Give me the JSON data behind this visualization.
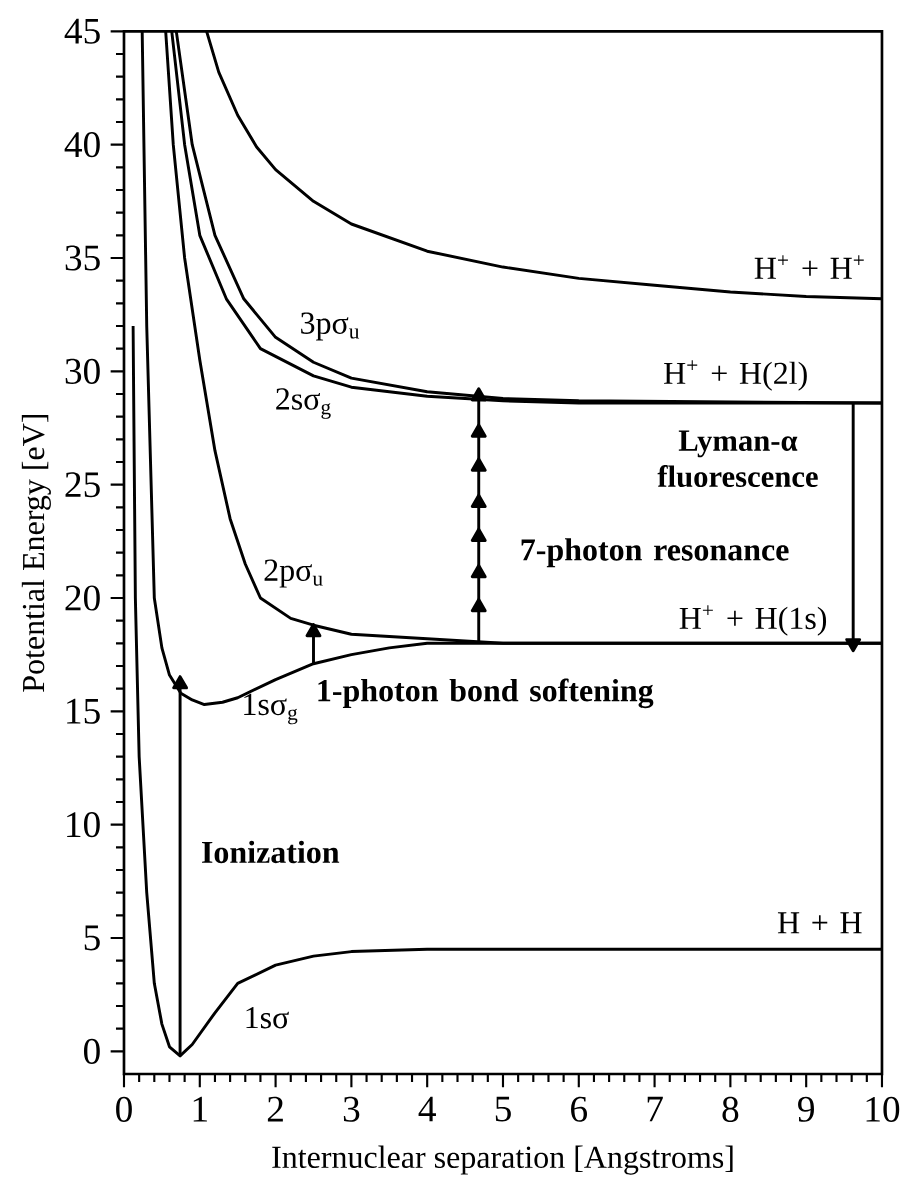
{
  "chart_data": {
    "type": "line",
    "xlabel": "Internuclear separation [Angstroms]",
    "ylabel": "Potential Energy [eV]",
    "xlim": [
      0,
      10
    ],
    "ylim": [
      -1,
      45
    ],
    "xticks": [
      0,
      1,
      2,
      3,
      4,
      5,
      6,
      7,
      8,
      9,
      10
    ],
    "yticks": [
      0,
      5,
      10,
      15,
      20,
      25,
      30,
      35,
      40,
      45
    ],
    "series": [
      {
        "color": "#000000",
        "x": [
          0.12,
          0.15,
          0.2,
          0.3,
          0.4,
          0.5,
          0.6,
          0.74,
          0.9,
          1.2,
          1.5,
          2,
          2.5,
          3,
          4,
          5,
          10
        ],
        "values": [
          32,
          20,
          13,
          7,
          3,
          1.2,
          0.2,
          -0.2,
          0.3,
          1.7,
          3,
          3.8,
          4.2,
          4.4,
          4.5,
          4.5,
          4.5
        ]
      },
      {
        "color": "#000000",
        "x": [
          0.24,
          0.3,
          0.4,
          0.5,
          0.6,
          0.75,
          0.9,
          1.06,
          1.3,
          1.5,
          2,
          2.5,
          3,
          3.5,
          4,
          5,
          10
        ],
        "values": [
          45,
          32,
          20,
          17.8,
          16.6,
          15.8,
          15.5,
          15.3,
          15.4,
          15.6,
          16.4,
          17.1,
          17.5,
          17.8,
          18,
          18,
          18
        ]
      },
      {
        "color": "#000000",
        "x": [
          0.55,
          0.65,
          0.8,
          1,
          1.2,
          1.4,
          1.6,
          1.8,
          2.2,
          2.5,
          3,
          4,
          5,
          10
        ],
        "values": [
          45,
          40,
          35,
          30.5,
          26.5,
          23.5,
          21.5,
          20,
          19.1,
          18.8,
          18.4,
          18.2,
          18,
          18
        ]
      },
      {
        "color": "#000000",
        "x": [
          0.63,
          0.8,
          1,
          1.35,
          1.8,
          2.5,
          3,
          4,
          5,
          6,
          10
        ],
        "values": [
          45,
          40,
          36,
          33.2,
          31,
          29.8,
          29.3,
          28.9,
          28.7,
          28.6,
          28.6
        ]
      },
      {
        "color": "#000000",
        "x": [
          0.69,
          0.9,
          1.2,
          1.58,
          2,
          2.5,
          3,
          4,
          5,
          6,
          10
        ],
        "values": [
          45,
          40,
          36,
          33.2,
          31.5,
          30.4,
          29.7,
          29.1,
          28.8,
          28.7,
          28.6
        ]
      },
      {
        "color": "#000000",
        "x": [
          1.09,
          1.25,
          1.5,
          1.75,
          2,
          2.5,
          3,
          4,
          5,
          6,
          7,
          8,
          9,
          10
        ],
        "values": [
          45,
          43.2,
          41.3,
          39.9,
          38.9,
          37.5,
          36.5,
          35.3,
          34.6,
          34.1,
          33.8,
          33.5,
          33.3,
          33.2
        ]
      },
      {
        "color": "#000000",
        "marker": "triangle",
        "x": [
          0.74,
          0.74
        ],
        "values": [
          -0.2,
          16.2
        ]
      },
      {
        "color": "#000000",
        "marker": "triangle",
        "x": [
          2.5,
          2.5
        ],
        "values": [
          17.1,
          18.5
        ]
      },
      {
        "color": "#000000",
        "marker": "triangle",
        "x": [
          4.68,
          4.68,
          4.68,
          4.68,
          4.68,
          4.68,
          4.68,
          4.68
        ],
        "values": [
          18,
          19.6,
          21.1,
          22.7,
          24.2,
          25.8,
          27.3,
          28.9
        ]
      },
      {
        "color": "#000000",
        "marker": "triangle",
        "x": [
          9.62,
          9.62
        ],
        "values": [
          28.6,
          18
        ]
      }
    ],
    "annotations": [
      "1sσ",
      "1sσ$_{g}$",
      "2pσ$_{u}$",
      "2sσ$_{g}$",
      "3pσ$_{u}$",
      "H + H",
      "H$^{+}$ + H(1s)",
      "H$^{+}$ + H(2l)",
      "H$^{+}$ + H$^{+}$",
      "**Ionization**",
      "**1-photon bond softening**",
      "**7-photon resonance**",
      "**Lyman-α fluorescence**"
    ]
  }
}
